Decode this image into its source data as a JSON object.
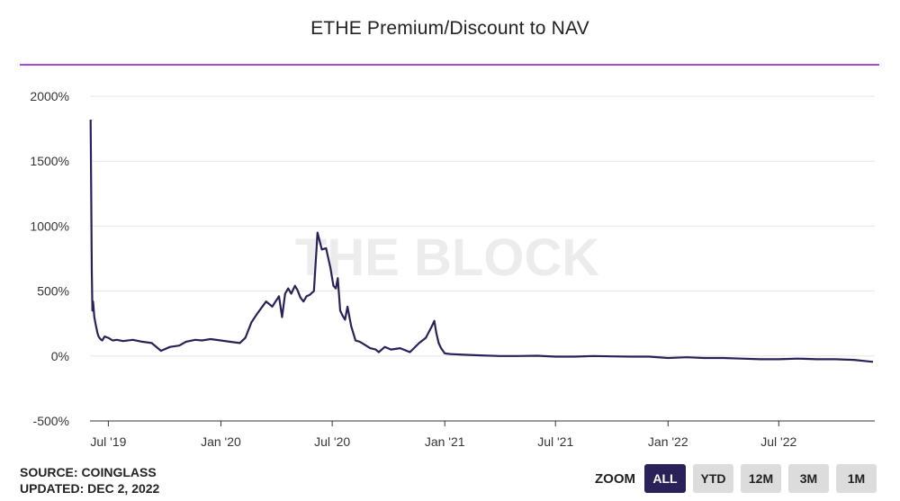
{
  "chart_data": {
    "type": "line",
    "title": "ETHE Premium/Discount to NAV",
    "xlabel": "",
    "ylabel": "",
    "ylim": [
      -500,
      2000
    ],
    "y_ticks": [
      "2000%",
      "1500%",
      "1000%",
      "500%",
      "0%",
      "-500%"
    ],
    "x_ticks": [
      "Jul '19",
      "Jan '20",
      "Jul '20",
      "Jan '21",
      "Jul '21",
      "Jan '22",
      "Jul '22"
    ],
    "watermark": "THE BLOCK",
    "line_color": "#2a2158",
    "grid": true,
    "series": [
      {
        "x": [
          "2019-06-02",
          "2019-06-03",
          "2019-06-04",
          "2019-06-05",
          "2019-06-06",
          "2019-06-08",
          "2019-06-10",
          "2019-06-13",
          "2019-06-15",
          "2019-06-18",
          "2019-06-21",
          "2019-06-25",
          "2019-07-01",
          "2019-07-08",
          "2019-07-15",
          "2019-07-25",
          "2019-08-10",
          "2019-08-25",
          "2019-09-10",
          "2019-09-25",
          "2019-10-10",
          "2019-10-25",
          "2019-11-05",
          "2019-11-20",
          "2019-12-01",
          "2019-12-15",
          "2020-01-01",
          "2020-01-15",
          "2020-02-01",
          "2020-02-10",
          "2020-02-20",
          "2020-03-01",
          "2020-03-15",
          "2020-03-25",
          "2020-04-05",
          "2020-04-10",
          "2020-04-15",
          "2020-04-20",
          "2020-04-25",
          "2020-05-01",
          "2020-05-05",
          "2020-05-10",
          "2020-05-15",
          "2020-05-20",
          "2020-05-25",
          "2020-06-01",
          "2020-06-07",
          "2020-06-14",
          "2020-06-21",
          "2020-06-28",
          "2020-07-03",
          "2020-07-07",
          "2020-07-10",
          "2020-07-14",
          "2020-07-18",
          "2020-07-22",
          "2020-07-26",
          "2020-08-01",
          "2020-08-08",
          "2020-08-15",
          "2020-08-22",
          "2020-09-01",
          "2020-09-10",
          "2020-09-15",
          "2020-09-25",
          "2020-10-05",
          "2020-10-20",
          "2020-11-05",
          "2020-11-20",
          "2020-12-01",
          "2020-12-10",
          "2020-12-15",
          "2020-12-18",
          "2020-12-22",
          "2020-12-26",
          "2021-01-01",
          "2021-01-10",
          "2021-02-01",
          "2021-03-01",
          "2021-04-01",
          "2021-05-01",
          "2021-06-01",
          "2021-07-01",
          "2021-08-01",
          "2021-09-01",
          "2021-10-01",
          "2021-11-01",
          "2021-12-01",
          "2022-01-01",
          "2022-02-01",
          "2022-03-01",
          "2022-04-01",
          "2022-05-01",
          "2022-06-01",
          "2022-07-01",
          "2022-08-01",
          "2022-09-01",
          "2022-10-01",
          "2022-11-01",
          "2022-12-02"
        ],
        "y": [
          1820,
          1200,
          650,
          350,
          420,
          300,
          250,
          180,
          150,
          130,
          120,
          150,
          140,
          120,
          125,
          115,
          125,
          110,
          100,
          40,
          70,
          80,
          110,
          125,
          120,
          130,
          120,
          110,
          100,
          140,
          260,
          330,
          420,
          380,
          460,
          300,
          480,
          520,
          480,
          540,
          510,
          450,
          420,
          460,
          470,
          500,
          950,
          820,
          830,
          680,
          540,
          520,
          600,
          350,
          310,
          280,
          380,
          230,
          120,
          110,
          90,
          60,
          50,
          30,
          70,
          50,
          60,
          30,
          100,
          140,
          220,
          270,
          180,
          100,
          60,
          20,
          15,
          10,
          5,
          0,
          0,
          2,
          -5,
          -5,
          0,
          -3,
          -5,
          -5,
          -15,
          -10,
          -15,
          -15,
          -20,
          -25,
          -25,
          -20,
          -25,
          -25,
          -30,
          -45
        ]
      }
    ]
  },
  "footer": {
    "source": "SOURCE: COINGLASS",
    "updated": "UPDATED: DEC 2, 2022"
  },
  "zoom": {
    "label": "ZOOM",
    "buttons": [
      "ALL",
      "YTD",
      "12M",
      "3M",
      "1M"
    ],
    "active": "ALL"
  }
}
